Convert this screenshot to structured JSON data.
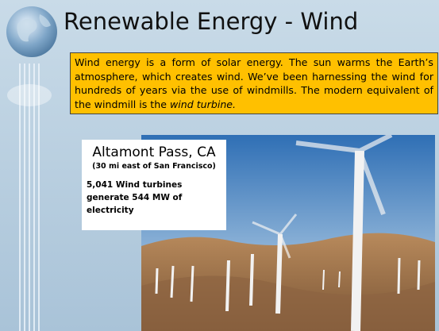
{
  "slide": {
    "title": "Renewable Energy - Wind",
    "callout": {
      "text": "Wind energy is a form of solar energy. The sun warms the Earth’s atmosphere, which creates wind. We’ve been harnessing the wind for hundreds of years via the use of windmills. The modern equivalent of the windmill is the ",
      "emphasis": "wind turbine."
    },
    "caption": {
      "heading": "Altamont Pass, CA",
      "subheading": "(30 mi east of San Francisco)",
      "body": "5,041 Wind turbines generate 544 MW of electricity"
    }
  }
}
